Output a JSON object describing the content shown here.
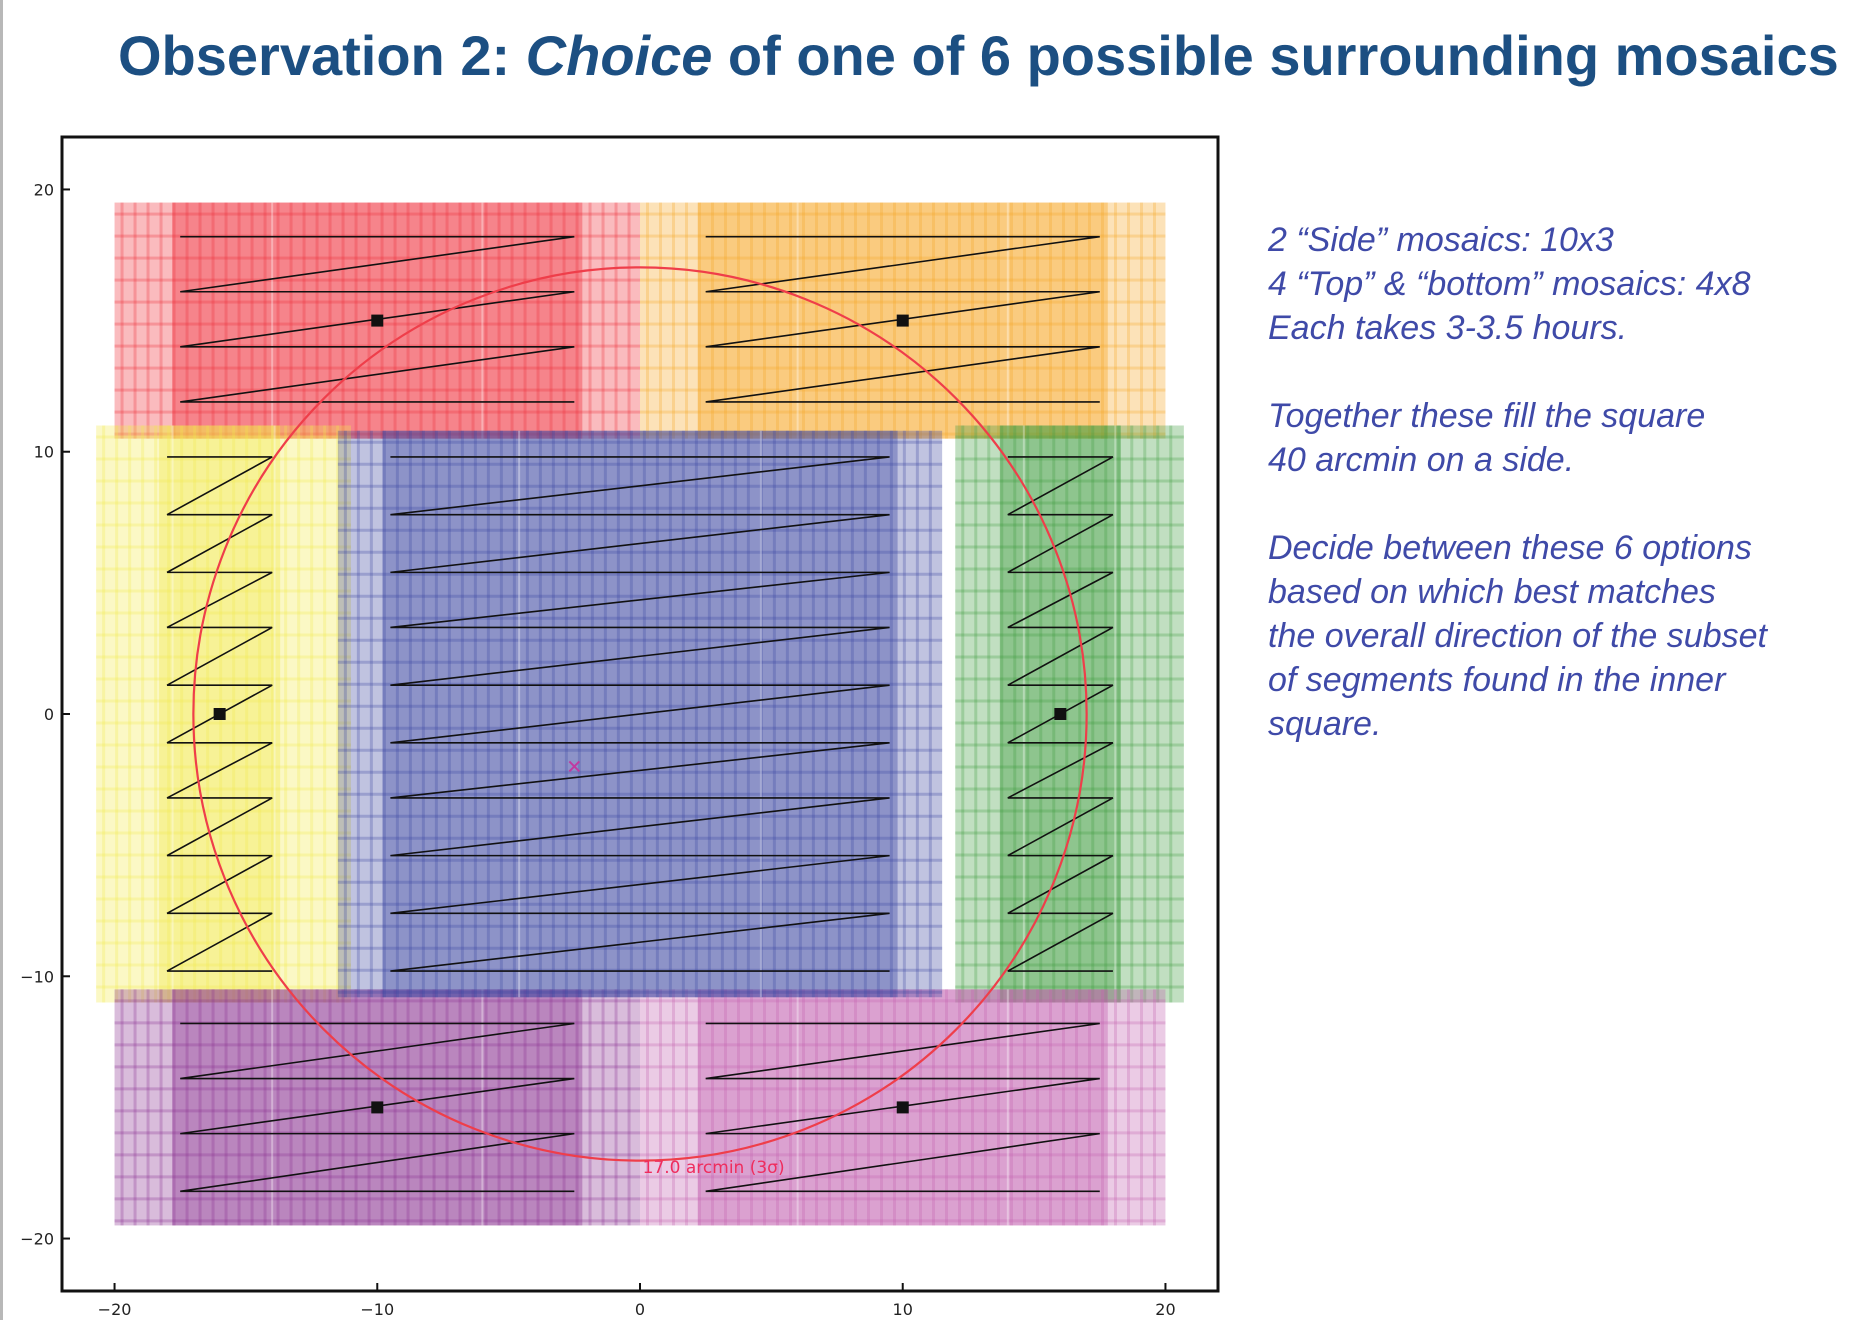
{
  "title": {
    "prefix": "Observation 2: ",
    "emphasis": "Choice",
    "suffix": " of one of 6 possible surrounding mosaics"
  },
  "notes": {
    "block1": [
      "2 “Side” mosaics: 10x3",
      "4 “Top” & “bottom” mosaics:  4x8",
      "Each takes 3-3.5 hours."
    ],
    "block2": [
      "Together these fill the square",
      "40 arcmin on a side."
    ],
    "block3": [
      "Decide between these 6 options",
      "based on which best matches",
      "the overall direction of the subset",
      "of segments found in the inner",
      "square."
    ]
  },
  "diagram": {
    "circle_label": "17.0 arcmin (3σ)",
    "x_ticks": [
      "−20",
      "−10",
      "0",
      "10",
      "20"
    ],
    "y_ticks": [
      "20",
      "10",
      "0",
      "−10",
      "−20"
    ],
    "x_tick_values": [
      -20,
      -10,
      0,
      10,
      20
    ],
    "y_tick_values": [
      20,
      10,
      0,
      -10,
      -20
    ],
    "axis_range": {
      "x": [
        -22,
        22
      ],
      "y": [
        -22,
        22
      ]
    },
    "circle": {
      "center": [
        0,
        0
      ],
      "radius": 17
    },
    "center_marker": [
      -2.5,
      -2
    ],
    "mosaics": [
      {
        "name": "top-left",
        "color": "#ee2a36",
        "x": [
          -20,
          0
        ],
        "y": [
          10.5,
          19.5
        ],
        "scan_x": [
          -17.5,
          -2.5
        ],
        "rows": [
          18.2,
          16.1,
          14,
          11.9
        ],
        "dir": "right",
        "center": [
          -10,
          15
        ]
      },
      {
        "name": "top-right",
        "color": "#f6a623",
        "x": [
          0,
          20
        ],
        "y": [
          10.5,
          19.5
        ],
        "scan_x": [
          2.5,
          17.5
        ],
        "rows": [
          18.2,
          16.1,
          14,
          11.9
        ],
        "dir": "right",
        "center": [
          10,
          15
        ]
      },
      {
        "name": "left-side",
        "color": "#f2e84a",
        "x": [
          -20.7,
          -11
        ],
        "y": [
          -11,
          11
        ],
        "scan_x": [
          -18,
          -14
        ],
        "rows": [
          9.8,
          7.6,
          5.4,
          3.3,
          1.1,
          -1.1,
          -3.2,
          -5.4,
          -7.6,
          -9.8
        ],
        "dir": "right",
        "center": [
          -16,
          0
        ]
      },
      {
        "name": "right-side",
        "color": "#3d9a3d",
        "x": [
          12,
          20.7
        ],
        "y": [
          -11,
          11
        ],
        "scan_x": [
          14,
          18
        ],
        "rows": [
          9.8,
          7.6,
          5.4,
          3.3,
          1.1,
          -1.1,
          -3.2,
          -5.4,
          -7.6,
          -9.8
        ],
        "dir": "right",
        "center": [
          16,
          0
        ]
      },
      {
        "name": "bottom-left",
        "color": "#8a2f8f",
        "x": [
          -20,
          0
        ],
        "y": [
          -19.5,
          -10.5
        ],
        "scan_x": [
          -17.5,
          -2.5
        ],
        "rows": [
          -11.8,
          -13.9,
          -16,
          -18.2
        ],
        "dir": "right",
        "center": [
          -10,
          -15
        ]
      },
      {
        "name": "bottom-right",
        "color": "#c25cae",
        "x": [
          0,
          20
        ],
        "y": [
          -19.5,
          -10.5
        ],
        "scan_x": [
          2.5,
          17.5
        ],
        "rows": [
          -11.8,
          -13.9,
          -16,
          -18.2
        ],
        "dir": "right",
        "center": [
          10,
          -15
        ]
      },
      {
        "name": "inner-square",
        "color": "#3a45a0",
        "x": [
          -11.5,
          11.5
        ],
        "y": [
          -10.8,
          10.8
        ],
        "scan_x": [
          -9.5,
          9.5
        ],
        "rows": [
          9.8,
          7.6,
          5.4,
          3.3,
          1.1,
          -1.1,
          -3.2,
          -5.4,
          -7.6,
          -9.8
        ],
        "dir": "right",
        "center": null
      }
    ]
  }
}
